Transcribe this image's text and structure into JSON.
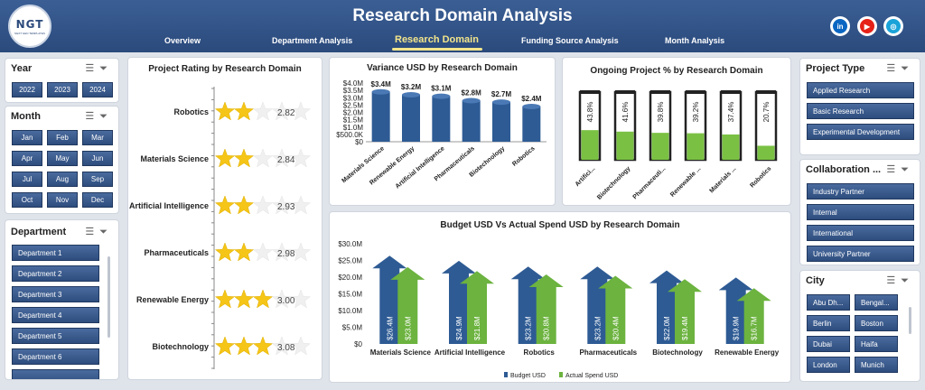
{
  "header": {
    "logo_text": "NGT",
    "logo_sub": "NEXT GEN TEMPLATES",
    "title": "Research Domain Analysis",
    "tabs": [
      {
        "label": "Overview"
      },
      {
        "label": "Department Analysis"
      },
      {
        "label": "Research Domain"
      },
      {
        "label": "Funding Source Analysis"
      },
      {
        "label": "Month Analysis"
      }
    ],
    "active_tab": "Research Domain",
    "social": [
      {
        "icon": "linkedin-icon",
        "label": "in",
        "color": "#0a66c2"
      },
      {
        "icon": "youtube-icon",
        "label": "▶",
        "color": "#e62117"
      },
      {
        "icon": "globe-icon",
        "label": "◎",
        "color": "#1aa3d9"
      }
    ]
  },
  "slicers": {
    "year": {
      "title": "Year",
      "items": [
        "2022",
        "2023",
        "2024"
      ]
    },
    "month": {
      "title": "Month",
      "items": [
        "Jan",
        "Feb",
        "Mar",
        "Apr",
        "May",
        "Jun",
        "Jul",
        "Aug",
        "Sep",
        "Oct",
        "Nov",
        "Dec"
      ]
    },
    "department": {
      "title": "Department",
      "items": [
        "Department 1",
        "Department 2",
        "Department 3",
        "Department 4",
        "Department 5",
        "Department 6"
      ]
    },
    "project_type": {
      "title": "Project Type",
      "items": [
        "Applied Research",
        "Basic Research",
        "Experimental Development"
      ]
    },
    "collaboration": {
      "title": "Collaboration ...",
      "items": [
        "Industry Partner",
        "Internal",
        "International",
        "University Partner"
      ]
    },
    "city": {
      "title": "City",
      "items": [
        "Abu Dh...",
        "Bengal...",
        "Berlin",
        "Boston",
        "Dubai",
        "Haifa",
        "London",
        "Munich"
      ]
    }
  },
  "chart_data": [
    {
      "type": "bar",
      "title": "Project Rating by Research Domain",
      "categories": [
        "Robotics",
        "Materials Science",
        "Artificial Intelligence",
        "Pharmaceuticals",
        "Renewable Energy",
        "Biotechnology"
      ],
      "values": [
        2.82,
        2.84,
        2.93,
        2.98,
        3.0,
        3.08
      ],
      "value_labels": [
        "2.82",
        "2.84",
        "2.93",
        "2.98",
        "3.00",
        "3.08"
      ],
      "max": 5,
      "star_color": "#f5c518"
    },
    {
      "type": "bar",
      "title": "Variance USD by Research Domain",
      "categories": [
        "Materials Science",
        "Renewable Energy",
        "Artificial Intelligence",
        "Pharmaceuticals",
        "Biotechnology",
        "Robotics"
      ],
      "values": [
        3.4,
        3.2,
        3.1,
        2.8,
        2.7,
        2.4
      ],
      "value_labels": [
        "$3.4M",
        "$3.2M",
        "$3.1M",
        "$2.8M",
        "$2.7M",
        "$2.4M"
      ],
      "yticks": [
        "$4.0M",
        "$3.5M",
        "$3.0M",
        "$2.5M",
        "$2.0M",
        "$1.5M",
        "$1.0M",
        "$500.0K",
        "$0"
      ],
      "ylim": [
        0,
        4
      ],
      "color": "#2e5b94"
    },
    {
      "type": "bar",
      "title": "Ongoing Project % by Research Domain",
      "categories": [
        "Artifici...",
        "Biotechnology",
        "Pharmaceuti...",
        "Renewable ...",
        "Materials ...",
        "Robotics"
      ],
      "values": [
        43.8,
        41.6,
        39.8,
        39.2,
        37.4,
        20.7
      ],
      "value_labels": [
        "43.8%",
        "41.6%",
        "39.8%",
        "39.2%",
        "37.4%",
        "20.7%"
      ],
      "ylim": [
        0,
        100
      ],
      "color": "#7ac143"
    },
    {
      "type": "bar",
      "title": "Budget USD Vs Actual Spend USD by Research Domain",
      "categories": [
        "Materials Science",
        "Artificial Intelligence",
        "Robotics",
        "Pharmaceuticals",
        "Biotechnology",
        "Renewable Energy"
      ],
      "series": [
        {
          "name": "Budget USD",
          "values": [
            26.4,
            24.9,
            23.2,
            23.2,
            22.0,
            19.9
          ],
          "labels": [
            "$26.4M",
            "$24.9M",
            "$23.2M",
            "$23.2M",
            "$22.0M",
            "$19.9M"
          ],
          "color": "#2e5b94"
        },
        {
          "name": "Actual Spend USD",
          "values": [
            23.0,
            21.8,
            20.8,
            20.4,
            19.4,
            16.7
          ],
          "labels": [
            "$23.0M",
            "$21.8M",
            "$20.8M",
            "$20.4M",
            "$19.4M",
            "$16.7M"
          ],
          "color": "#6cb33f"
        }
      ],
      "yticks": [
        "$30.0M",
        "$25.0M",
        "$20.0M",
        "$15.0M",
        "$10.0M",
        "$5.0M",
        "$0"
      ],
      "ylim": [
        0,
        30
      ],
      "legend": "bottom"
    }
  ]
}
